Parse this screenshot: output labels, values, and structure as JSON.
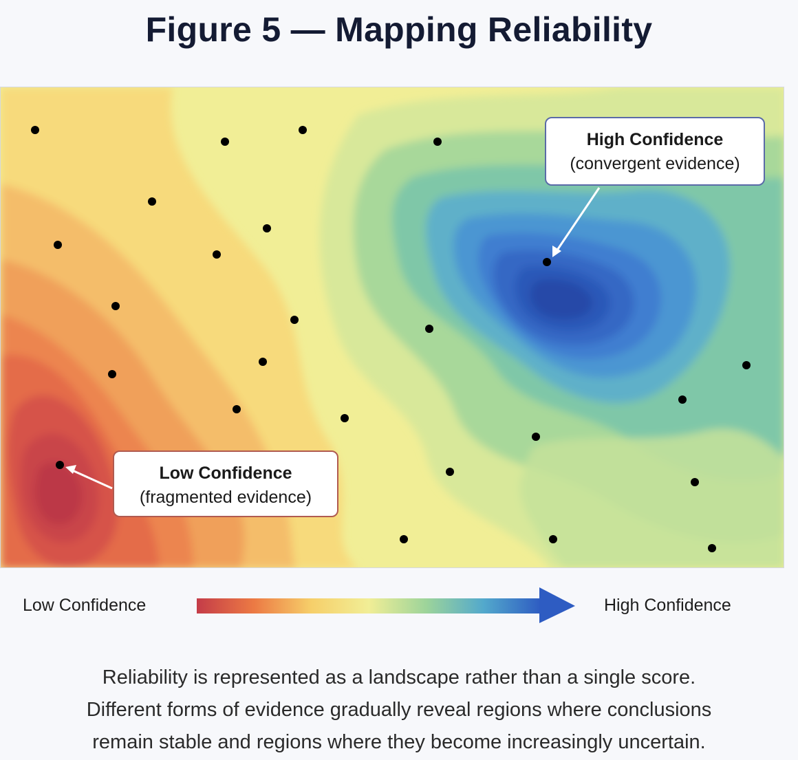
{
  "figure": {
    "title": "Figure 5 — Mapping Reliability"
  },
  "callouts": {
    "high": {
      "title": "High Confidence",
      "subtitle": "(convergent evidence)"
    },
    "low": {
      "title": "Low Confidence",
      "subtitle": "(fragmented evidence)"
    }
  },
  "legend": {
    "low_label": "Low Confidence",
    "high_label": "High Confidence",
    "gradient_colors": [
      "#c43c48",
      "#ec7a44",
      "#f6cf6a",
      "#f1ee96",
      "#9dd49a",
      "#53a9cc",
      "#2e5cc2"
    ]
  },
  "caption": {
    "lines": [
      "Reliability is represented as a landscape rather than a single score.",
      "Different forms of evidence gradually reveal regions where conclusions",
      "remain stable and regions where they become increasingly uncertain."
    ]
  },
  "colors": {
    "low": "#c43c48",
    "mid": "#f1ee96",
    "high": "#2e5cc2",
    "marker": "#000000"
  }
}
